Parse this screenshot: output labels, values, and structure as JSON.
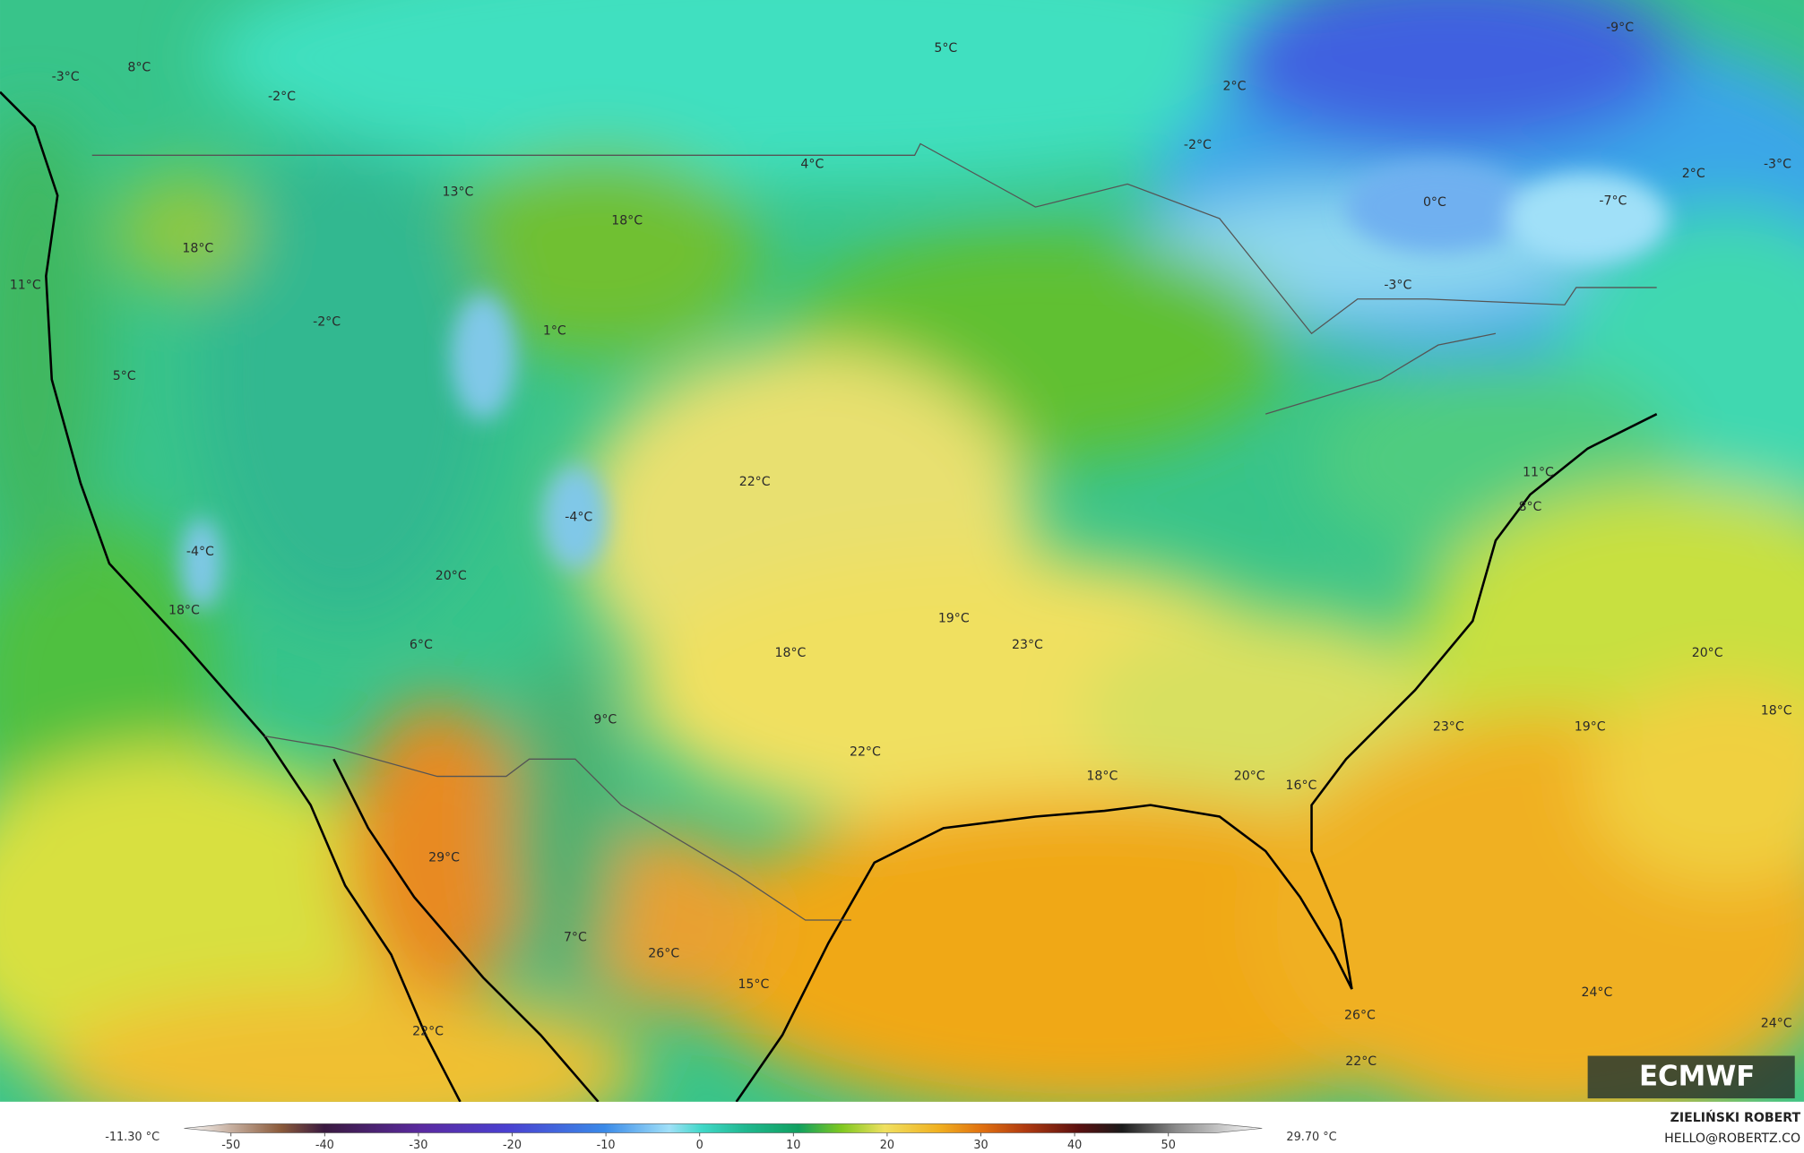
{
  "map_labels": [
    "-3°C",
    "8°C",
    "-2°C",
    "5°C",
    "2°C",
    "-9°C",
    "-2°C",
    "4°C",
    "13°C",
    "18°C",
    "0°C",
    "2°C",
    "-3°C",
    "-7°C",
    "18°C",
    "11°C",
    "-3°C",
    "-2°C",
    "1°C",
    "5°C",
    "22°C",
    "11°C",
    "8°C",
    "-4°C",
    "-4°C",
    "20°C",
    "18°C",
    "19°C",
    "23°C",
    "6°C",
    "18°C",
    "20°C",
    "9°C",
    "23°C",
    "19°C",
    "18°C",
    "22°C",
    "18°C",
    "20°C",
    "16°C",
    "29°C",
    "7°C",
    "26°C",
    "15°C",
    "24°C",
    "24°C",
    "26°C",
    "22°C",
    "22°C"
  ],
  "colorbar": {
    "min_label": "-11.30 °C",
    "max_label": "29.70 °C",
    "lim": [
      -55,
      60
    ],
    "ticks": [
      -50,
      -40,
      -30,
      -20,
      -10,
      0,
      10,
      20,
      30,
      40,
      50
    ]
  },
  "logo": "ECMWF",
  "credit": {
    "author": "ZIELIŃSKI ROBERT",
    "contact": "HELLO@ROBERTZ.CO"
  }
}
